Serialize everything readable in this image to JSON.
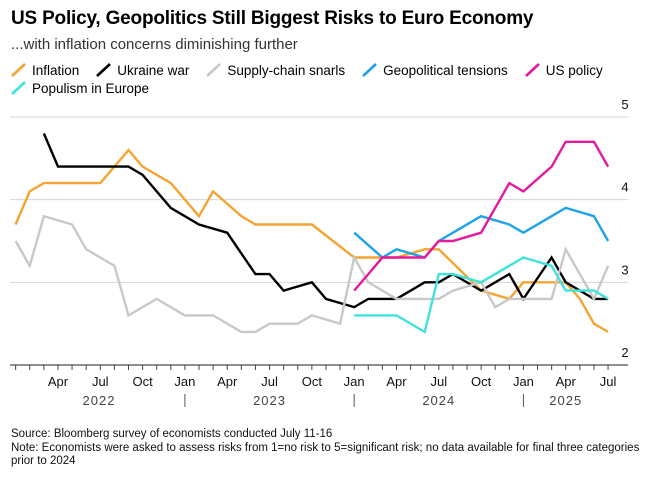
{
  "title": "US Policy, Geopolitics Still Biggest Risks to Euro Economy",
  "subtitle": "...with inflation concerns diminishing further",
  "footnote": {
    "source": "Source: Bloomberg survey of economists conducted July 11-16",
    "note": "Note: Economists were asked to assess risks from 1=no risk to 5=significant risk; no data available for final three categories prior to 2024"
  },
  "chart_data": {
    "type": "line",
    "x_range": [
      "2022-01",
      "2025-07"
    ],
    "ylim": [
      2,
      5
    ],
    "y_ticks": [
      2,
      3,
      4,
      5
    ],
    "y_axis_position": "right",
    "grid": "horizontal",
    "legend_position": "top",
    "x_tick_labels": [
      {
        "label": "Apr",
        "x": "2022-04"
      },
      {
        "label": "Jul",
        "x": "2022-07"
      },
      {
        "label": "Oct",
        "x": "2022-10"
      },
      {
        "label": "Jan",
        "x": "2023-01"
      },
      {
        "label": "Apr",
        "x": "2023-04"
      },
      {
        "label": "Jul",
        "x": "2023-07"
      },
      {
        "label": "Oct",
        "x": "2023-10"
      },
      {
        "label": "Jan",
        "x": "2024-01"
      },
      {
        "label": "Apr",
        "x": "2024-04"
      },
      {
        "label": "Jul",
        "x": "2024-07"
      },
      {
        "label": "Oct",
        "x": "2024-10"
      },
      {
        "label": "Jan",
        "x": "2025-01"
      },
      {
        "label": "Apr",
        "x": "2025-04"
      },
      {
        "label": "Jul",
        "x": "2025-07"
      }
    ],
    "year_labels": [
      {
        "label": "2022",
        "from": "2022-01",
        "to": "2023-01"
      },
      {
        "label": "2023",
        "from": "2023-01",
        "to": "2024-01"
      },
      {
        "label": "2024",
        "from": "2024-01",
        "to": "2025-01"
      },
      {
        "label": "2025",
        "from": "2025-01",
        "to": "2025-07"
      }
    ],
    "series": [
      {
        "name": "Inflation",
        "color": "#f5a431",
        "points": [
          [
            "2022-01",
            3.7
          ],
          [
            "2022-02",
            4.1
          ],
          [
            "2022-03",
            4.2
          ],
          [
            "2022-05",
            4.2
          ],
          [
            "2022-07",
            4.2
          ],
          [
            "2022-09",
            4.6
          ],
          [
            "2022-10",
            4.4
          ],
          [
            "2022-12",
            4.2
          ],
          [
            "2023-02",
            3.8
          ],
          [
            "2023-03",
            4.1
          ],
          [
            "2023-05",
            3.8
          ],
          [
            "2023-06",
            3.7
          ],
          [
            "2023-08",
            3.7
          ],
          [
            "2023-10",
            3.7
          ],
          [
            "2024-01",
            3.3
          ],
          [
            "2024-04",
            3.3
          ],
          [
            "2024-06",
            3.4
          ],
          [
            "2024-07",
            3.4
          ],
          [
            "2024-10",
            2.9
          ],
          [
            "2024-12",
            2.8
          ],
          [
            "2025-01",
            3.0
          ],
          [
            "2025-03",
            3.0
          ],
          [
            "2025-04",
            3.0
          ],
          [
            "2025-05",
            2.8
          ],
          [
            "2025-06",
            2.5
          ],
          [
            "2025-07",
            2.4
          ]
        ]
      },
      {
        "name": "Ukraine war",
        "color": "#000000",
        "points": [
          [
            "2022-03",
            4.8
          ],
          [
            "2022-04",
            4.4
          ],
          [
            "2022-06",
            4.4
          ],
          [
            "2022-09",
            4.4
          ],
          [
            "2022-10",
            4.3
          ],
          [
            "2022-12",
            3.9
          ],
          [
            "2023-02",
            3.7
          ],
          [
            "2023-04",
            3.6
          ],
          [
            "2023-06",
            3.1
          ],
          [
            "2023-07",
            3.1
          ],
          [
            "2023-08",
            2.9
          ],
          [
            "2023-10",
            3.0
          ],
          [
            "2023-11",
            2.8
          ],
          [
            "2024-01",
            2.7
          ],
          [
            "2024-02",
            2.8
          ],
          [
            "2024-04",
            2.8
          ],
          [
            "2024-06",
            3.0
          ],
          [
            "2024-07",
            3.0
          ],
          [
            "2024-08",
            3.1
          ],
          [
            "2024-10",
            2.9
          ],
          [
            "2024-12",
            3.1
          ],
          [
            "2025-01",
            2.8
          ],
          [
            "2025-03",
            3.3
          ],
          [
            "2025-04",
            3.0
          ],
          [
            "2025-06",
            2.8
          ],
          [
            "2025-07",
            2.8
          ]
        ]
      },
      {
        "name": "Supply-chain snarls",
        "color": "#c8c8c8",
        "points": [
          [
            "2022-01",
            3.5
          ],
          [
            "2022-02",
            3.2
          ],
          [
            "2022-03",
            3.8
          ],
          [
            "2022-05",
            3.7
          ],
          [
            "2022-06",
            3.4
          ],
          [
            "2022-08",
            3.2
          ],
          [
            "2022-09",
            2.6
          ],
          [
            "2022-11",
            2.8
          ],
          [
            "2023-01",
            2.6
          ],
          [
            "2023-03",
            2.6
          ],
          [
            "2023-05",
            2.4
          ],
          [
            "2023-06",
            2.4
          ],
          [
            "2023-07",
            2.5
          ],
          [
            "2023-09",
            2.5
          ],
          [
            "2023-10",
            2.6
          ],
          [
            "2023-12",
            2.5
          ],
          [
            "2024-01",
            3.3
          ],
          [
            "2024-02",
            3.0
          ],
          [
            "2024-03",
            2.9
          ],
          [
            "2024-04",
            2.8
          ],
          [
            "2024-06",
            2.8
          ],
          [
            "2024-07",
            2.8
          ],
          [
            "2024-08",
            2.9
          ],
          [
            "2024-10",
            3.0
          ],
          [
            "2024-11",
            2.7
          ],
          [
            "2024-12",
            2.8
          ],
          [
            "2025-01",
            2.8
          ],
          [
            "2025-03",
            2.8
          ],
          [
            "2025-04",
            3.4
          ],
          [
            "2025-06",
            2.8
          ],
          [
            "2025-07",
            3.2
          ]
        ]
      },
      {
        "name": "Geopolitical tensions",
        "color": "#1fa3e8",
        "points": [
          [
            "2024-01",
            3.6
          ],
          [
            "2024-03",
            3.3
          ],
          [
            "2024-04",
            3.4
          ],
          [
            "2024-06",
            3.3
          ],
          [
            "2024-07",
            3.5
          ],
          [
            "2024-08",
            3.6
          ],
          [
            "2024-10",
            3.8
          ],
          [
            "2024-12",
            3.7
          ],
          [
            "2025-01",
            3.6
          ],
          [
            "2025-03",
            3.8
          ],
          [
            "2025-04",
            3.9
          ],
          [
            "2025-06",
            3.8
          ],
          [
            "2025-07",
            3.5
          ]
        ]
      },
      {
        "name": "US policy",
        "color": "#e5199c",
        "points": [
          [
            "2024-01",
            2.9
          ],
          [
            "2024-02",
            3.1
          ],
          [
            "2024-03",
            3.3
          ],
          [
            "2024-05",
            3.3
          ],
          [
            "2024-06",
            3.3
          ],
          [
            "2024-07",
            3.5
          ],
          [
            "2024-08",
            3.5
          ],
          [
            "2024-10",
            3.6
          ],
          [
            "2024-12",
            4.2
          ],
          [
            "2025-01",
            4.1
          ],
          [
            "2025-03",
            4.4
          ],
          [
            "2025-04",
            4.7
          ],
          [
            "2025-06",
            4.7
          ],
          [
            "2025-07",
            4.4
          ]
        ]
      },
      {
        "name": "Populism in Europe",
        "color": "#3ee3da",
        "points": [
          [
            "2024-01",
            2.6
          ],
          [
            "2024-03",
            2.6
          ],
          [
            "2024-04",
            2.6
          ],
          [
            "2024-06",
            2.4
          ],
          [
            "2024-07",
            3.1
          ],
          [
            "2024-08",
            3.1
          ],
          [
            "2024-10",
            3.0
          ],
          [
            "2024-12",
            3.2
          ],
          [
            "2025-01",
            3.3
          ],
          [
            "2025-03",
            3.2
          ],
          [
            "2025-04",
            2.9
          ],
          [
            "2025-06",
            2.9
          ],
          [
            "2025-07",
            2.8
          ]
        ]
      }
    ]
  }
}
